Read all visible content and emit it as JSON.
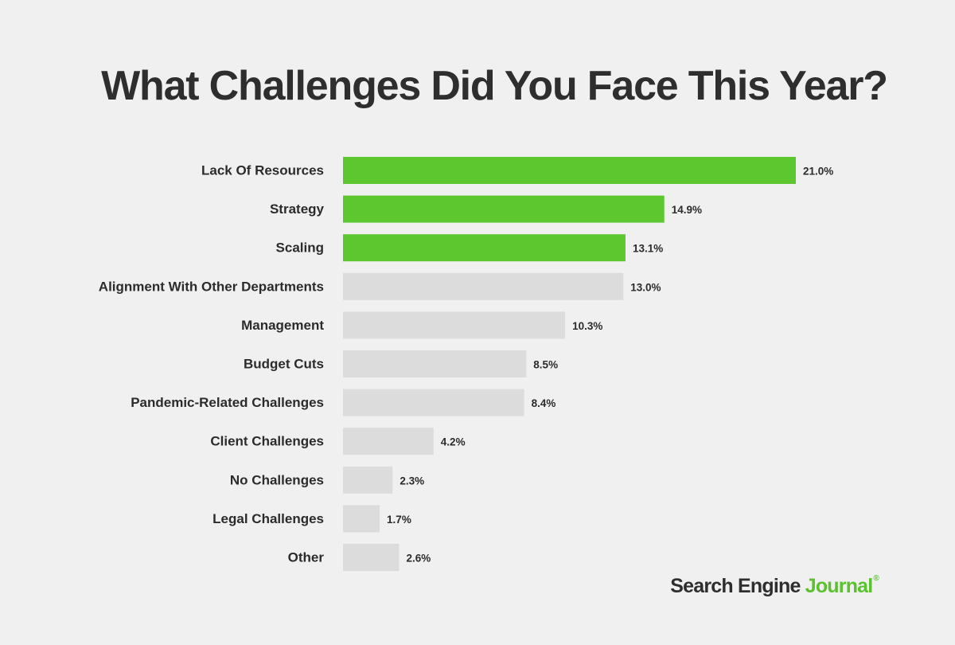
{
  "chart_data": {
    "type": "bar",
    "orientation": "horizontal",
    "title": "What Challenges Did You Face This Year?",
    "categories": [
      "Lack Of Resources",
      "Strategy",
      "Scaling",
      "Alignment With Other Departments",
      "Management",
      "Budget Cuts",
      "Pandemic-Related Challenges",
      "Client Challenges",
      "No Challenges",
      "Legal Challenges",
      "Other"
    ],
    "values": [
      21.0,
      14.9,
      13.1,
      13.0,
      10.3,
      8.5,
      8.4,
      4.2,
      2.3,
      1.7,
      2.6
    ],
    "value_labels": [
      "21.0%",
      "14.9%",
      "13.1%",
      "13.0%",
      "10.3%",
      "8.5%",
      "8.4%",
      "4.2%",
      "2.3%",
      "1.7%",
      "2.6%"
    ],
    "highlighted": [
      true,
      true,
      true,
      false,
      false,
      false,
      false,
      false,
      false,
      false,
      false
    ],
    "colors": {
      "highlight": "#5cc72e",
      "default": "#dcdcdc",
      "background": "#f0f0f0",
      "text": "#2b2b2b"
    },
    "xlim": [
      0,
      21.0
    ],
    "grid": false,
    "legend": "none"
  },
  "brand": {
    "part1": "Search Engine ",
    "part2": "Journal",
    "mark": "®"
  }
}
